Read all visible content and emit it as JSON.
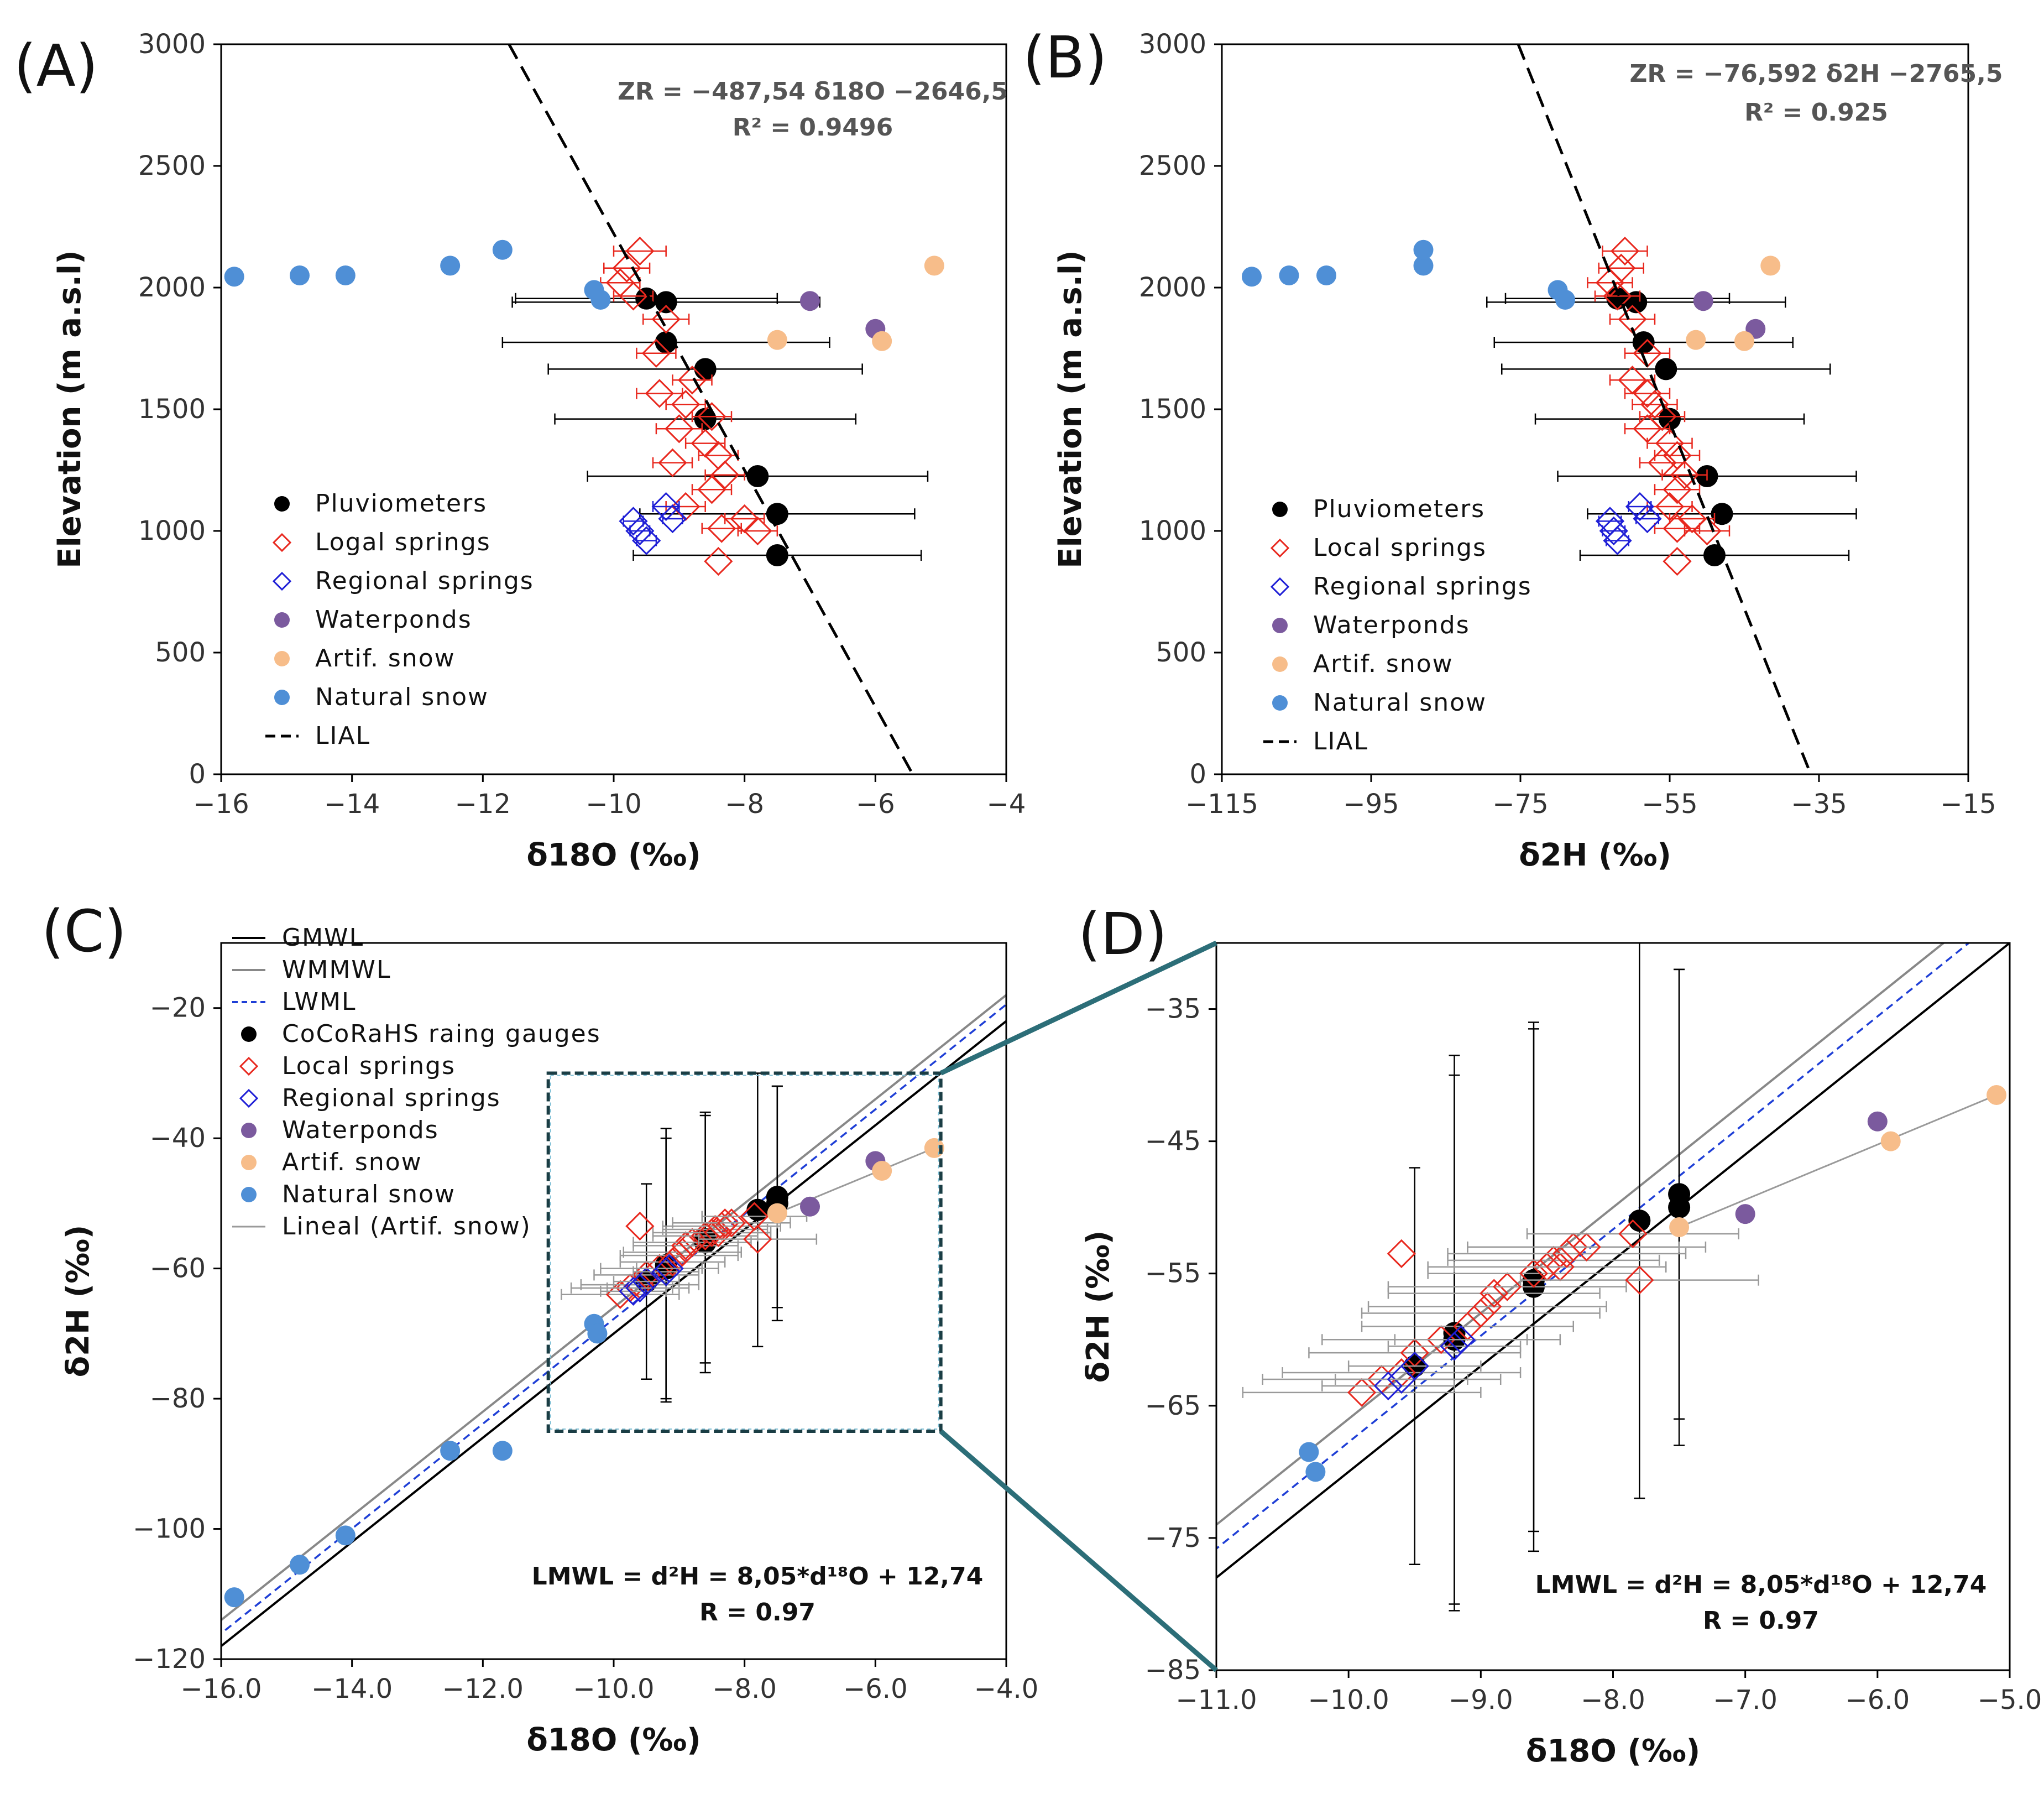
{
  "colors": {
    "pluviometer": "#000000",
    "local_spring": "#e8281e",
    "regional_spring": "#1f1fd6",
    "water_pond": "#7b5a9e",
    "artif_snow": "#f7bd8a",
    "natural_snow": "#4f8fd6",
    "gmwl": "#000000",
    "wmmwl": "#888888",
    "lwml": "#1f3fd6",
    "zoom": "#2c6e78"
  },
  "chart_data": [
    {
      "id": "A",
      "type": "scatter",
      "panel_label": "(A)",
      "xlabel": "δ18O (‰)",
      "ylabel": "Elevation (m a.s.l)",
      "xlim": [
        -16,
        -4
      ],
      "ylim": [
        0,
        3000
      ],
      "xticks": [
        -16,
        -14,
        -12,
        -10,
        -8,
        -6,
        -4
      ],
      "yticks": [
        0,
        500,
        1000,
        1500,
        2000,
        2500,
        3000
      ],
      "xtick_labels": [
        "−16",
        "−14",
        "−12",
        "−10",
        "−8",
        "−6",
        "−4"
      ],
      "ytick_labels": [
        "0",
        "500",
        "1000",
        "1500",
        "2000",
        "2500",
        "3000"
      ],
      "equation": "ZR = −487,54 δ18O −2646,5",
      "r2": "R² = 0.9496",
      "legend": [
        "Pluviometers",
        "Logal springs",
        "Regional springs",
        "Waterponds",
        "Artif. snow",
        "Natural snow",
        "LIAL"
      ],
      "legend_position": "bottom-left",
      "series": [
        {
          "name": "Pluviometers",
          "x": [
            -9.5,
            -9.2,
            -9.2,
            -8.6,
            -8.6,
            -7.8,
            -7.5,
            -7.5
          ],
          "y": [
            1955,
            1940,
            1775,
            1665,
            1460,
            1225,
            1070,
            900
          ],
          "xerr": [
            2.0,
            2.35,
            2.5,
            2.4,
            2.3,
            2.6,
            2.1,
            2.2
          ]
        },
        {
          "name": "Logal springs",
          "x": [
            -9.6,
            -9.8,
            -9.9,
            -9.7,
            -9.2,
            -9.35,
            -8.8,
            -9.3,
            -8.9,
            -8.5,
            -9.0,
            -8.6,
            -8.4,
            -9.1,
            -8.3,
            -8.5,
            -8.9,
            -8.0,
            -8.35,
            -7.8,
            -8.4
          ],
          "y": [
            2150,
            2080,
            2020,
            1965,
            1870,
            1730,
            1620,
            1565,
            1520,
            1470,
            1420,
            1360,
            1310,
            1280,
            1230,
            1170,
            1100,
            1050,
            1010,
            1000,
            875
          ],
          "xerr": [
            0.4,
            0.35,
            0.3,
            0.3,
            0.35,
            0.3,
            0.3,
            0.35,
            0.3,
            0.3,
            0.35,
            0.3,
            0.3,
            0.3,
            0.3,
            0.3,
            0.3,
            0.3,
            0.3,
            0.3,
            0
          ]
        },
        {
          "name": "Regional springs",
          "x": [
            -9.2,
            -9.7,
            -9.6,
            -9.1,
            -9.5
          ],
          "y": [
            1100,
            1040,
            1000,
            1050,
            960
          ],
          "xerr": [
            0.2,
            0.15,
            0.15,
            0.15,
            0.15
          ]
        },
        {
          "name": "Waterponds",
          "x": [
            -7.0,
            -6.0
          ],
          "y": [
            1945,
            1830
          ],
          "xerr": [
            0,
            0
          ]
        },
        {
          "name": "Artif. snow",
          "x": [
            -5.1,
            -7.5,
            -5.9
          ],
          "y": [
            2090,
            1785,
            1780
          ],
          "xerr": [
            0,
            0,
            0
          ]
        },
        {
          "name": "Natural snow",
          "x": [
            -15.8,
            -14.8,
            -14.1,
            -12.5,
            -11.7,
            -10.3,
            -10.2
          ],
          "y": [
            2045,
            2050,
            2050,
            2090,
            2155,
            1990,
            1950
          ],
          "xerr": [
            0,
            0,
            0,
            0,
            0,
            0,
            0
          ]
        },
        {
          "name": "LIAL",
          "x": [
            -11.6,
            -5.43
          ],
          "y": [
            3000,
            0
          ]
        }
      ]
    },
    {
      "id": "B",
      "type": "scatter",
      "panel_label": "(B)",
      "xlabel": "δ2H (‰)",
      "ylabel": "Elevation (m a.s.l)",
      "xlim": [
        -115,
        -15
      ],
      "ylim": [
        0,
        3000
      ],
      "xticks": [
        -115,
        -95,
        -75,
        -55,
        -35,
        -15
      ],
      "yticks": [
        0,
        500,
        1000,
        1500,
        2000,
        2500,
        3000
      ],
      "xtick_labels": [
        "−115",
        "−95",
        "−75",
        "−55",
        "−35",
        "−15"
      ],
      "ytick_labels": [
        "0",
        "500",
        "1000",
        "1500",
        "2000",
        "2500",
        "3000"
      ],
      "equation": "ZR = −76,592 δ2H −2765,5",
      "r2": "R² = 0.925",
      "legend": [
        "Pluviometers",
        "Local springs",
        "Regional springs",
        "Waterponds",
        "Artif. snow",
        "Natural snow",
        "LIAL"
      ],
      "legend_position": "bottom-left",
      "series": [
        {
          "name": "Pluviometers",
          "x": [
            -62,
            -59.5,
            -58.5,
            -55.5,
            -55,
            -50,
            -48,
            -49
          ],
          "y": [
            1955,
            1940,
            1775,
            1665,
            1460,
            1225,
            1070,
            900
          ],
          "xerr": [
            15,
            20,
            20,
            22,
            18,
            20,
            18,
            18
          ]
        },
        {
          "name": "Local springs",
          "x": [
            -61,
            -61.5,
            -63,
            -62,
            -60,
            -58,
            -60,
            -58,
            -57,
            -56,
            -58,
            -55,
            -54,
            -56,
            -53,
            -54,
            -55,
            -52,
            -54,
            -50,
            -54
          ],
          "y": [
            2150,
            2080,
            2020,
            1965,
            1870,
            1730,
            1620,
            1565,
            1520,
            1470,
            1420,
            1360,
            1310,
            1280,
            1230,
            1170,
            1100,
            1050,
            1010,
            1000,
            875
          ],
          "xerr": [
            3,
            3,
            3,
            3,
            3,
            3,
            3,
            3,
            3,
            3,
            3,
            3,
            3,
            3,
            3,
            3,
            3,
            3,
            3,
            3,
            0
          ]
        },
        {
          "name": "Regional springs",
          "x": [
            -59,
            -63,
            -62.5,
            -58,
            -62
          ],
          "y": [
            1100,
            1040,
            1000,
            1050,
            960
          ],
          "xerr": [
            1.5,
            1.5,
            1.5,
            1.5,
            1.5
          ]
        },
        {
          "name": "Waterponds",
          "x": [
            -50.5,
            -43.5
          ],
          "y": [
            1945,
            1830
          ],
          "xerr": [
            0,
            0
          ]
        },
        {
          "name": "Artif. snow",
          "x": [
            -41.5,
            -51.5,
            -45
          ],
          "y": [
            2090,
            1785,
            1780
          ],
          "xerr": [
            0,
            0,
            0
          ]
        },
        {
          "name": "Natural snow",
          "x": [
            -111,
            -106,
            -101,
            -88,
            -88,
            -70,
            -69
          ],
          "y": [
            2045,
            2050,
            2050,
            2090,
            2155,
            1990,
            1950
          ],
          "xerr": [
            0,
            0,
            0,
            0,
            0,
            0,
            0
          ]
        },
        {
          "name": "LIAL",
          "x": [
            -75.3,
            -36.1
          ],
          "y": [
            3000,
            0
          ]
        }
      ]
    },
    {
      "id": "C",
      "type": "scatter",
      "panel_label": "(C)",
      "xlabel": "δ18O (‰)",
      "ylabel": "δ2H (‰)",
      "xlim": [
        -16,
        -4
      ],
      "ylim": [
        -120,
        -10
      ],
      "xticks": [
        -16,
        -14,
        -12,
        -10,
        -8,
        -6,
        -4
      ],
      "yticks": [
        -120,
        -100,
        -80,
        -60,
        -40,
        -20
      ],
      "xtick_labels": [
        "−16.0",
        "−14.0",
        "−12.0",
        "−10.0",
        "−8.0",
        "−6.0",
        "−4.0"
      ],
      "ytick_labels": [
        "−120",
        "−100",
        "−80",
        "−60",
        "−40",
        "−20"
      ],
      "equation": "LMWL = d²H = 8,05*d¹⁸O + 12,74",
      "r": "R = 0.97",
      "legend": [
        "GMWL",
        "WMMWL",
        "LWML",
        "CoCoRaHS raing gauges",
        "Local springs",
        "Regional springs",
        "Waterponds",
        "Artif. snow",
        "Natural snow",
        "Lineal (Artif. snow)"
      ],
      "legend_position": "top-left",
      "zoom_box": {
        "x": [
          -11,
          -5
        ],
        "y": [
          -85,
          -30
        ]
      },
      "lines": [
        {
          "name": "GMWL",
          "slope": 8,
          "intercept": 10
        },
        {
          "name": "WMMWL",
          "slope": 8,
          "intercept": 14
        },
        {
          "name": "LWML",
          "slope": 8.05,
          "intercept": 12.74
        },
        {
          "name": "Lineal (Artif. snow)",
          "x": [
            -7.5,
            -5.1
          ],
          "y": [
            -51.5,
            -41.5
          ]
        }
      ],
      "series": [
        {
          "name": "CoCoRaHS raing gauges",
          "x": [
            -9.5,
            -9.2,
            -9.2,
            -8.6,
            -8.6,
            -7.8,
            -7.5,
            -7.5
          ],
          "y": [
            -62,
            -60,
            -59.5,
            -56,
            -55.5,
            -51,
            -49,
            -50
          ],
          "yerr": [
            15,
            20,
            21,
            20,
            19,
            21,
            17,
            18
          ]
        },
        {
          "name": "Local springs",
          "x": [
            -9.9,
            -9.75,
            -9.6,
            -9.5,
            -9.3,
            -9.1,
            -9.0,
            -8.95,
            -8.9,
            -8.8,
            -8.6,
            -8.5,
            -8.45,
            -8.4,
            -8.35,
            -8.3,
            -8.2,
            -7.85,
            -7.8,
            -9.6
          ],
          "y": [
            -64,
            -63,
            -62.5,
            -61,
            -60,
            -59,
            -58,
            -57.5,
            -56.5,
            -56,
            -55,
            -54.5,
            -54,
            -54.5,
            -53.5,
            -53,
            -53,
            -52,
            -55.5,
            -53.5
          ],
          "xerr": [
            0.9,
            0.9,
            0.9,
            0.8,
            0.9,
            0.8,
            0.9,
            0.9,
            0.8,
            0.9,
            0.8,
            0.9,
            0.8,
            0.8,
            0.9,
            0.8,
            0.9,
            0.8,
            0.9,
            0
          ]
        },
        {
          "name": "Regional springs",
          "x": [
            -9.7,
            -9.6,
            -9.5,
            -9.2,
            -9.15
          ],
          "y": [
            -63.5,
            -63,
            -62,
            -60.5,
            -60
          ],
          "xerr": [
            0.5,
            0.5,
            0.5,
            0.5,
            0.5
          ]
        },
        {
          "name": "Waterponds",
          "x": [
            -7.0,
            -6.0
          ],
          "y": [
            -50.5,
            -43.5
          ]
        },
        {
          "name": "Artif. snow",
          "x": [
            -5.1,
            -7.5,
            -5.9
          ],
          "y": [
            -41.5,
            -51.5,
            -45
          ]
        },
        {
          "name": "Natural snow",
          "x": [
            -15.8,
            -14.8,
            -14.1,
            -12.5,
            -11.7,
            -10.3,
            -10.25
          ],
          "y": [
            -110.5,
            -105.5,
            -101,
            -88,
            -88,
            -68.5,
            -70
          ]
        }
      ]
    },
    {
      "id": "D",
      "type": "scatter",
      "panel_label": "(D)",
      "xlabel": "δ18O (‰)",
      "ylabel": "δ2H (‰)",
      "xlim": [
        -11,
        -5
      ],
      "ylim": [
        -85,
        -30
      ],
      "xticks": [
        -11,
        -10,
        -9,
        -8,
        -7,
        -6,
        -5
      ],
      "yticks": [
        -85,
        -75,
        -65,
        -55,
        -45,
        -35
      ],
      "xtick_labels": [
        "−11.0",
        "−10.0",
        "−9.0",
        "−8.0",
        "−7.0",
        "−6.0",
        "−5.0"
      ],
      "ytick_labels": [
        "−85",
        "−75",
        "−65",
        "−55",
        "−45",
        "−35"
      ],
      "equation": "LMWL = d²H = 8,05*d¹⁸O + 12,74",
      "r": "R = 0.97",
      "lines": [
        {
          "name": "GMWL",
          "slope": 8,
          "intercept": 10
        },
        {
          "name": "WMMWL",
          "slope": 8,
          "intercept": 14
        },
        {
          "name": "LWML",
          "slope": 8.05,
          "intercept": 12.74
        },
        {
          "name": "Lineal (Artif. snow)",
          "x": [
            -7.5,
            -5.1
          ],
          "y": [
            -51.5,
            -41.5
          ]
        }
      ],
      "series": [
        {
          "name": "CoCoRaHS raing gauges",
          "x": [
            -9.5,
            -9.2,
            -9.2,
            -8.6,
            -8.6,
            -7.8,
            -7.5,
            -7.5
          ],
          "y": [
            -62,
            -60,
            -59.5,
            -56,
            -55.5,
            -51,
            -49,
            -50
          ],
          "yerr": [
            15,
            20,
            21,
            20,
            19,
            21,
            17,
            18
          ]
        },
        {
          "name": "Local springs",
          "x": [
            -9.9,
            -9.75,
            -9.6,
            -9.5,
            -9.3,
            -9.1,
            -9.0,
            -8.95,
            -8.9,
            -8.8,
            -8.6,
            -8.5,
            -8.45,
            -8.4,
            -8.35,
            -8.3,
            -8.2,
            -7.85,
            -7.8,
            -9.6
          ],
          "y": [
            -64,
            -63,
            -62.5,
            -61,
            -60,
            -59,
            -58,
            -57.5,
            -56.5,
            -56,
            -55,
            -54.5,
            -54,
            -54.5,
            -53.5,
            -53,
            -53,
            -52,
            -55.5,
            -53.5
          ],
          "xerr": [
            0.9,
            0.9,
            0.9,
            0.8,
            0.9,
            0.8,
            0.9,
            0.9,
            0.8,
            0.9,
            0.8,
            0.9,
            0.8,
            0.8,
            0.9,
            0.8,
            0.9,
            0.8,
            0.9,
            0
          ]
        },
        {
          "name": "Regional springs",
          "x": [
            -9.7,
            -9.6,
            -9.5,
            -9.2,
            -9.15
          ],
          "y": [
            -63.5,
            -63,
            -62,
            -60.5,
            -60
          ],
          "xerr": [
            0.5,
            0.5,
            0.5,
            0.5,
            0.5
          ]
        },
        {
          "name": "Waterponds",
          "x": [
            -7.0,
            -6.0
          ],
          "y": [
            -50.5,
            -43.5
          ]
        },
        {
          "name": "Artif. snow",
          "x": [
            -5.1,
            -7.5,
            -5.9
          ],
          "y": [
            -41.5,
            -51.5,
            -45
          ]
        },
        {
          "name": "Natural snow",
          "x": [
            -10.3,
            -10.25
          ],
          "y": [
            -68.5,
            -70
          ]
        }
      ]
    }
  ]
}
